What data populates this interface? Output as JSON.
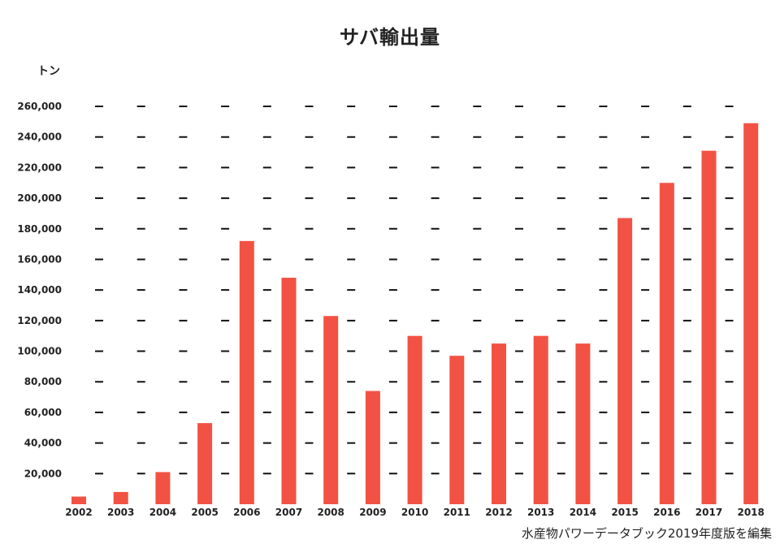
{
  "chart_data": {
    "type": "bar",
    "title": "サバ輸出量",
    "ylabel": "トン",
    "xlabel": "",
    "source": "水産物パワーデータブック2019年度版を編集",
    "categories": [
      "2002",
      "2003",
      "2004",
      "2005",
      "2006",
      "2007",
      "2008",
      "2009",
      "2010",
      "2011",
      "2012",
      "2013",
      "2014",
      "2015",
      "2016",
      "2017",
      "2018"
    ],
    "values": [
      5000,
      8000,
      21000,
      53000,
      172000,
      148000,
      123000,
      74000,
      110000,
      97000,
      105000,
      110000,
      105000,
      187000,
      210000,
      231000,
      249000
    ],
    "ylim": [
      0,
      260000
    ],
    "yticks": [
      20000,
      40000,
      60000,
      80000,
      100000,
      120000,
      140000,
      160000,
      180000,
      200000,
      220000,
      240000,
      260000
    ],
    "ytick_labels": [
      "20,000",
      "40,000",
      "60,000",
      "80,000",
      "100,000",
      "120,000",
      "140,000",
      "160,000",
      "180,000",
      "200,000",
      "220,000",
      "240,000",
      "260,000"
    ],
    "grid": "dashed horizontal",
    "legend": "none",
    "bar_color": "#f25243",
    "grid_color": "#111111"
  }
}
